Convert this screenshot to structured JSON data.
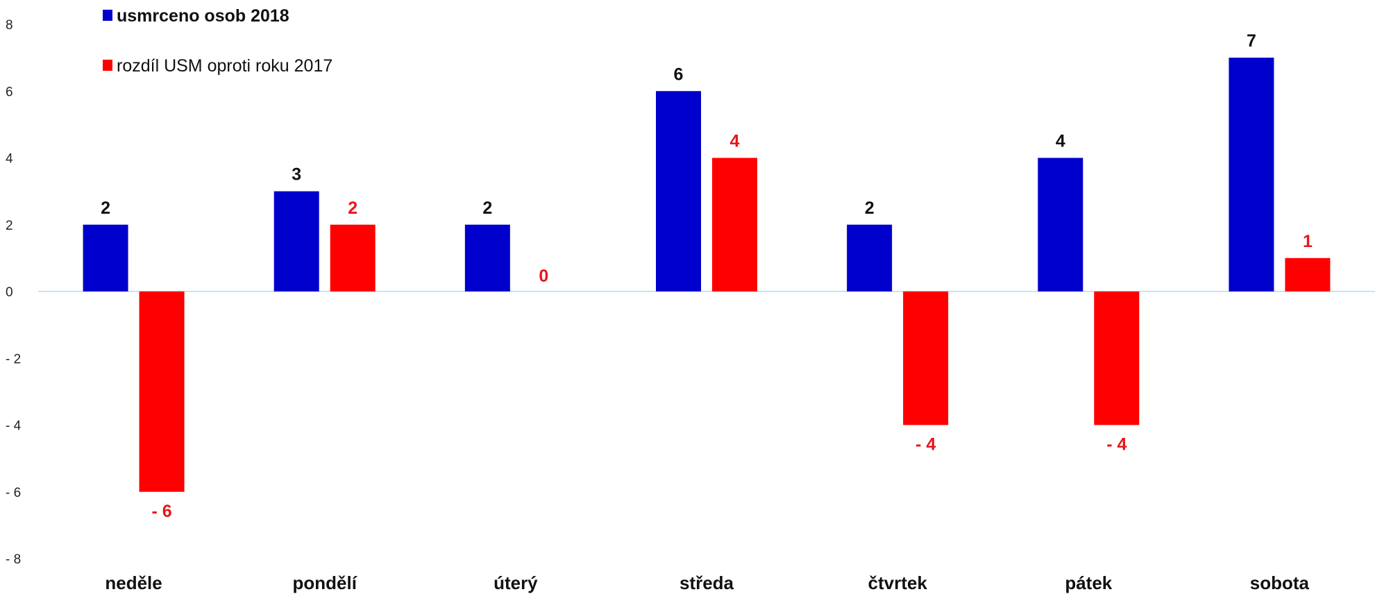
{
  "chart_data": {
    "type": "bar",
    "categories": [
      "neděle",
      "pondělí",
      "úterý",
      "středa",
      "čtvrtek",
      "pátek",
      "sobota"
    ],
    "series": [
      {
        "name": "usmrceno osob 2018",
        "values": [
          2,
          3,
          2,
          6,
          2,
          4,
          7
        ],
        "labels": [
          "2",
          "3",
          "2",
          "6",
          "2",
          "4",
          "7"
        ],
        "color": "#0000CC",
        "label_color": "#111111"
      },
      {
        "name": "rozdíl USM oproti roku 2017",
        "values": [
          -6,
          2,
          0,
          4,
          -4,
          -4,
          1
        ],
        "labels": [
          "- 6",
          "2",
          "0",
          "4",
          "- 4",
          "- 4",
          "1"
        ],
        "color": "#FF0000",
        "label_color": "#E8151B"
      }
    ],
    "y_ticks": [
      {
        "value": 8,
        "label": "8"
      },
      {
        "value": 6,
        "label": "6"
      },
      {
        "value": 4,
        "label": "4"
      },
      {
        "value": 2,
        "label": "2"
      },
      {
        "value": 0,
        "label": "0"
      },
      {
        "value": -2,
        "label": "- 2"
      },
      {
        "value": -4,
        "label": "- 4"
      },
      {
        "value": -6,
        "label": "- 6"
      },
      {
        "value": -8,
        "label": "- 8"
      }
    ],
    "ylim": [
      -8,
      8
    ],
    "grid": false,
    "legend_position": "top-left",
    "zero_line_color": "#BDD7EE"
  }
}
